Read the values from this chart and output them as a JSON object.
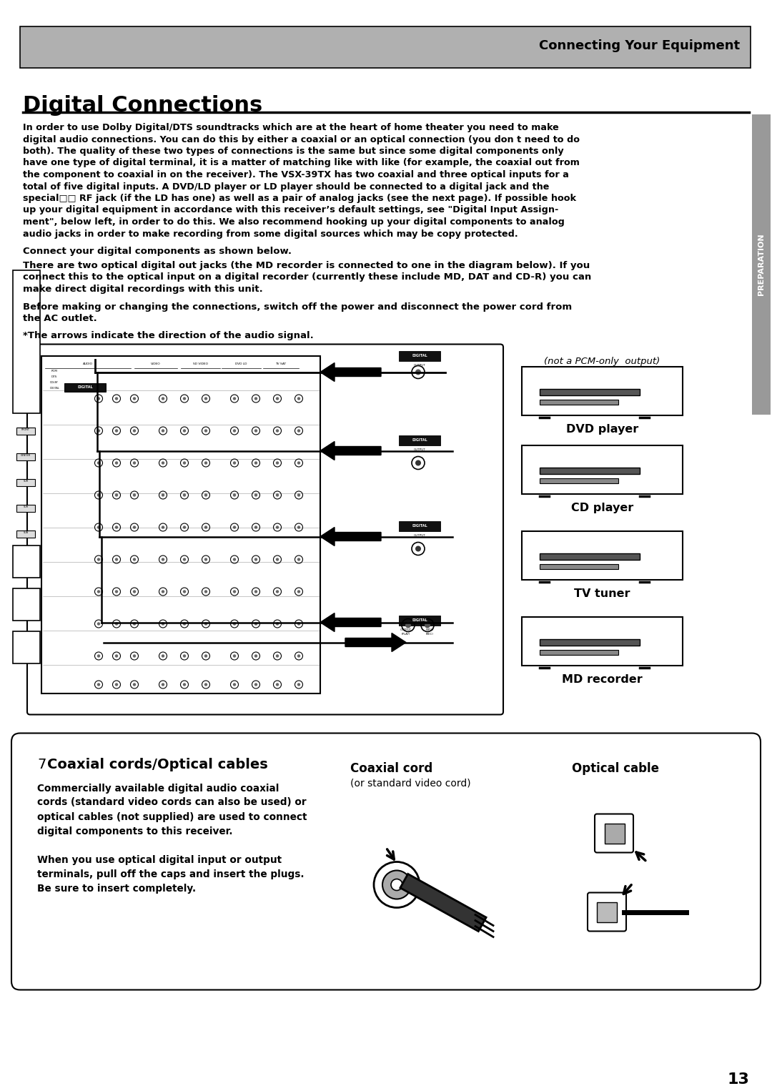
{
  "page_bg": "#ffffff",
  "header_bg": "#b0b0b0",
  "header_text": "Connecting Your Equipment",
  "title": "Digital Connections",
  "sidebar_text": "PREPARATION",
  "para1_lines": [
    "In order to use Dolby Digital/DTS soundtracks which are at the heart of home theater you need to make",
    "digital audio connections. You can do this by either a coaxial or an optical connection (you don t need to do",
    "both). The quality of these two types of connections is the same but since some digital components only",
    "have one type of digital terminal, it is a matter of matching like with like (for example, the coaxial out from",
    "the component to coaxial in on the receiver). The VSX-39TX has two coaxial and three optical inputs for a",
    "total of five digital inputs. A DVD/LD player or LD player should be connected to a digital jack and the",
    "special□□ RF jack (if the LD has one) as well as a pair of analog jacks (see the next page). If possible hook",
    "up your digital equipment in accordance with this receiver’s default settings, see \"Digital Input Assign-",
    "ment\", below left, in order to do this. We also recommend hooking up your digital components to analog",
    "audio jacks in order to make recording from some digital sources which may be copy protected."
  ],
  "para2": "Connect your digital components as shown below.",
  "para3_lines": [
    "There are two optical digital out jacks (the MD recorder is connected to one in the diagram below). If you",
    "connect this to the optical input on a digital recorder (currently these include MD, DAT and CD-R) you can",
    "make direct digital recordings with this unit."
  ],
  "para4_lines": [
    "Before making or changing the connections, switch off the power and disconnect the power cord from",
    "the AC outlet."
  ],
  "para5": "*The arrows indicate the direction of the audio signal.",
  "device_labels": [
    "DVD player",
    "CD player",
    "TV tuner",
    "MD recorder"
  ],
  "pcm_note": "(not a PCM-only  output)",
  "box_num": "7",
  "box_title": "Coaxial cords/Optical cables",
  "box_p1": [
    "Commercially available digital audio coaxial",
    "cords (standard video cords can also be used) or",
    "optical cables (not supplied) are used to connect",
    "digital components to this receiver."
  ],
  "box_p2": [
    "When you use optical digital input or output",
    "terminals, pull off the caps and insert the plugs.",
    "Be sure to insert completely."
  ],
  "coaxial_label": "Coaxial cord",
  "coaxial_sub": "(or standard video cord)",
  "optical_label": "Optical cable",
  "page_number": "13"
}
